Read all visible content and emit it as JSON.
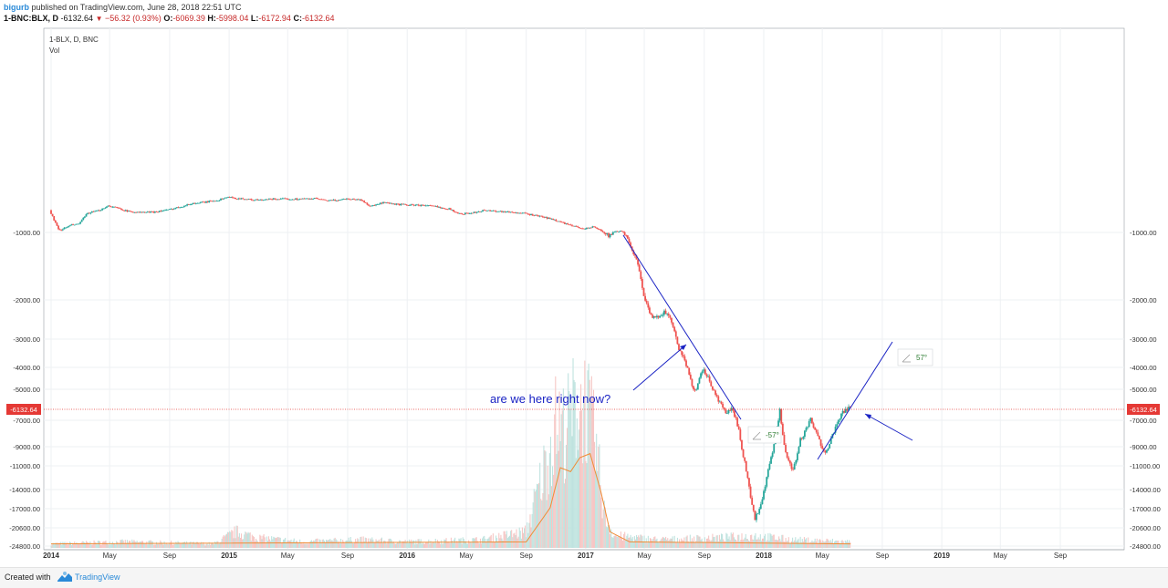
{
  "header": {
    "author": "bigurb",
    "published_text": " published on TradingView.com, June 28, 2018 22:51 UTC"
  },
  "ohlc": {
    "symbol": "1-BNC:BLX, D",
    "last": "-6132.64",
    "arrow": "▼",
    "change": "−56.32 (0.93%)",
    "open_label": "O:",
    "open": "-6069.39",
    "high_label": "H:",
    "high": "-5998.04",
    "low_label": "L:",
    "low": "-6172.94",
    "close_label": "C:",
    "close": "-6132.64"
  },
  "legend": {
    "series": "1-BLX, D, BNC",
    "volume": "Vol"
  },
  "chart_data": {
    "type": "candlestick",
    "symbol": "1-BLX, D, BNC",
    "y_ticks": [
      "-1000.00",
      "-2000.00",
      "-3000.00",
      "-4000.00",
      "-5000.00",
      "-7000.00",
      "-9000.00",
      "-11000.00",
      "-14000.00",
      "-17000.00",
      "-20600.00",
      "-24800.00"
    ],
    "x_ticks": [
      "2014",
      "May",
      "Sep",
      "2015",
      "May",
      "Sep",
      "2016",
      "May",
      "Sep",
      "2017",
      "May",
      "Sep",
      "2018",
      "May",
      "Sep",
      "2019",
      "May",
      "Sep"
    ],
    "bold_x_ticks": [
      "2014",
      "2015",
      "2016",
      "2017",
      "2018",
      "2019"
    ],
    "last_price": "-6132.64",
    "price_path": [
      [
        "2014-01-01",
        -400
      ],
      [
        "2014-01-20",
        -950
      ],
      [
        "2014-02-15",
        -800
      ],
      [
        "2014-03-01",
        -780
      ],
      [
        "2014-03-20",
        -480
      ],
      [
        "2014-04-10",
        -420
      ],
      [
        "2014-05-01",
        -280
      ],
      [
        "2014-05-20",
        -340
      ],
      [
        "2014-06-10",
        -430
      ],
      [
        "2014-07-01",
        -460
      ],
      [
        "2014-08-01",
        -450
      ],
      [
        "2014-09-01",
        -390
      ],
      [
        "2014-10-01",
        -290
      ],
      [
        "2014-10-20",
        -220
      ],
      [
        "2014-11-15",
        -185
      ],
      [
        "2014-12-15",
        -120
      ],
      [
        "2015-01-01",
        -40
      ],
      [
        "2015-01-15",
        -80
      ],
      [
        "2015-02-01",
        -90
      ],
      [
        "2015-02-20",
        -120
      ],
      [
        "2015-03-15",
        -130
      ],
      [
        "2015-04-01",
        -95
      ],
      [
        "2015-05-01",
        -100
      ],
      [
        "2015-06-01",
        -95
      ],
      [
        "2015-07-01",
        -85
      ],
      [
        "2015-07-20",
        -140
      ],
      [
        "2015-08-10",
        -135
      ],
      [
        "2015-09-01",
        -90
      ],
      [
        "2015-10-01",
        -120
      ],
      [
        "2015-10-20",
        -290
      ],
      [
        "2015-11-01",
        -260
      ],
      [
        "2015-11-15",
        -200
      ],
      [
        "2015-12-10",
        -240
      ],
      [
        "2016-01-10",
        -260
      ],
      [
        "2016-02-10",
        -270
      ],
      [
        "2016-03-01",
        -300
      ],
      [
        "2016-04-01",
        -370
      ],
      [
        "2016-04-20",
        -500
      ],
      [
        "2016-05-15",
        -480
      ],
      [
        "2016-06-10",
        -400
      ],
      [
        "2016-07-01",
        -420
      ],
      [
        "2016-08-01",
        -450
      ],
      [
        "2016-09-01",
        -490
      ],
      [
        "2016-10-01",
        -560
      ],
      [
        "2016-11-01",
        -660
      ],
      [
        "2016-12-01",
        -800
      ],
      [
        "2017-01-01",
        -900
      ],
      [
        "2017-01-20",
        -850
      ],
      [
        "2017-02-20",
        -1050
      ],
      [
        "2017-03-15",
        -950
      ],
      [
        "2017-04-01",
        -1100
      ],
      [
        "2017-04-20",
        -1450
      ],
      [
        "2017-05-20",
        -2500
      ],
      [
        "2017-06-15",
        -2300
      ],
      [
        "2017-07-01",
        -2600
      ],
      [
        "2017-07-15",
        -3400
      ],
      [
        "2017-08-01",
        -4000
      ],
      [
        "2017-08-15",
        -5200
      ],
      [
        "2017-09-01",
        -4100
      ],
      [
        "2017-09-15",
        -4600
      ],
      [
        "2017-10-01",
        -5600
      ],
      [
        "2017-10-20",
        -6600
      ],
      [
        "2017-11-01",
        -6200
      ],
      [
        "2017-11-15",
        -7800
      ],
      [
        "2017-12-01",
        -12000
      ],
      [
        "2017-12-17",
        -19000
      ],
      [
        "2018-01-01",
        -15500
      ],
      [
        "2018-01-15",
        -11000
      ],
      [
        "2018-02-06",
        -6400
      ],
      [
        "2018-02-20",
        -10000
      ],
      [
        "2018-03-05",
        -11500
      ],
      [
        "2018-03-20",
        -8500
      ],
      [
        "2018-04-10",
        -7000
      ],
      [
        "2018-04-25",
        -8300
      ],
      [
        "2018-05-10",
        -9500
      ],
      [
        "2018-05-25",
        -8200
      ],
      [
        "2018-06-10",
        -6700
      ],
      [
        "2018-06-28",
        -6132.64
      ]
    ],
    "volume_path": [
      [
        "2014-01-01",
        2
      ],
      [
        "2014-06-01",
        3
      ],
      [
        "2014-12-01",
        2
      ],
      [
        "2015-01-15",
        8
      ],
      [
        "2015-03-01",
        5
      ],
      [
        "2015-06-01",
        3
      ],
      [
        "2015-10-01",
        4
      ],
      [
        "2016-01-01",
        3
      ],
      [
        "2016-06-01",
        4
      ],
      [
        "2016-09-01",
        8
      ],
      [
        "2016-10-15",
        45
      ],
      [
        "2016-11-01",
        62
      ],
      [
        "2016-11-20",
        58
      ],
      [
        "2016-12-10",
        70
      ],
      [
        "2017-01-01",
        72
      ],
      [
        "2017-01-20",
        52
      ],
      [
        "2017-02-10",
        15
      ],
      [
        "2017-03-01",
        6
      ],
      [
        "2017-06-01",
        4
      ],
      [
        "2017-10-01",
        5
      ],
      [
        "2017-12-15",
        6
      ],
      [
        "2018-03-01",
        4
      ],
      [
        "2018-06-28",
        3
      ]
    ],
    "volume_ma_path": [
      [
        "2014-01-01",
        2
      ],
      [
        "2016-09-01",
        3
      ],
      [
        "2016-10-20",
        20
      ],
      [
        "2016-11-10",
        40
      ],
      [
        "2016-12-01",
        38
      ],
      [
        "2016-12-20",
        45
      ],
      [
        "2017-01-10",
        47
      ],
      [
        "2017-02-01",
        28
      ],
      [
        "2017-02-20",
        8
      ],
      [
        "2017-04-01",
        3
      ],
      [
        "2018-06-28",
        2
      ]
    ]
  },
  "annotations": {
    "callout_text": "are we here right now?",
    "angle_down": "-57°",
    "angle_up": "57°",
    "angle_icon": "angle-icon"
  },
  "footer": {
    "created_with": "Created with",
    "brand": "TradingView"
  },
  "colors": {
    "up": "#26a69a",
    "down": "#ef5350",
    "trend": "#1a23c4",
    "price_line": "#e53935",
    "axis_text": "#333333",
    "grid": "#eef0f3",
    "volume_ma": "#ef8c35",
    "brand": "#2a8ad8"
  }
}
